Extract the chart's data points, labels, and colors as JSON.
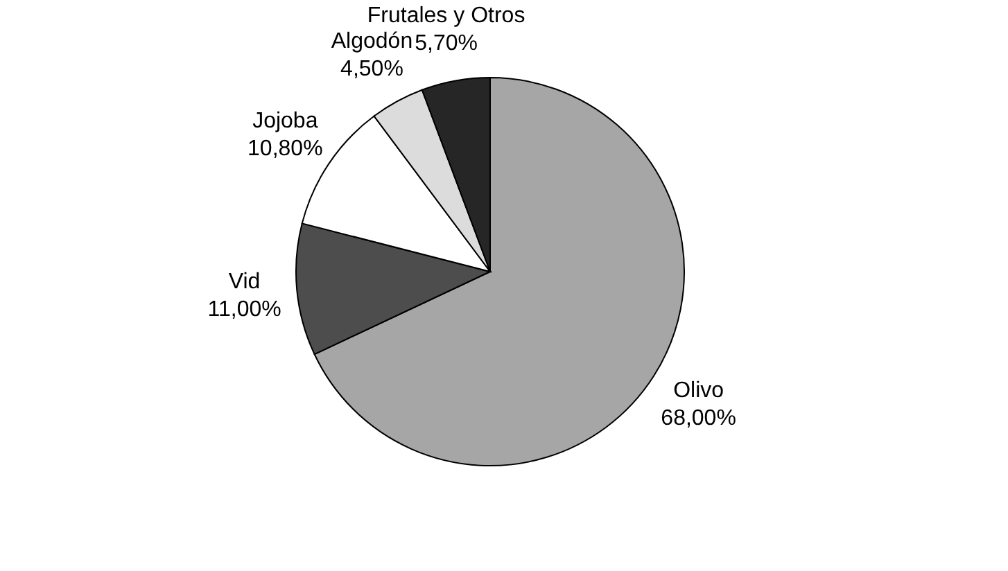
{
  "chart_data": {
    "type": "pie",
    "categories": [
      "Olivo",
      "Vid",
      "Jojoba",
      "Algodón",
      "Frutales y Otros"
    ],
    "values": [
      68,
      11,
      10.8,
      4.5,
      5.7
    ],
    "colors": [
      "#a6a6a6",
      "#4d4d4d",
      "#ffffff",
      "#dcdcdc",
      "#262626"
    ],
    "value_labels": [
      "68,00%",
      "11,00%",
      "10,80%",
      "4,50%",
      "5,70%"
    ],
    "legend": false
  }
}
